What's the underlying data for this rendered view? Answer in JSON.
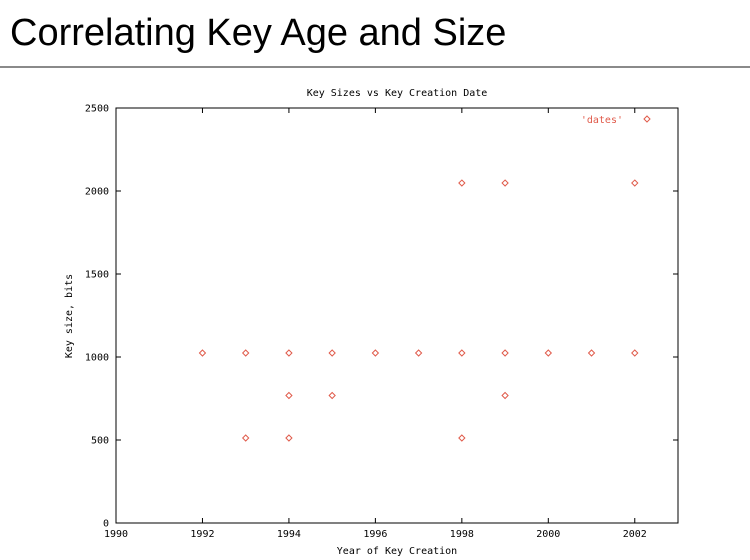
{
  "slide": {
    "title": "Correlating Key Age and Size"
  },
  "chart_data": {
    "type": "scatter",
    "title": "Key Sizes vs Key Creation Date",
    "xlabel": "Year of Key Creation",
    "ylabel": "Key size, bits",
    "xlim": [
      1990,
      2003
    ],
    "ylim": [
      0,
      2500
    ],
    "xticks": [
      1990,
      1992,
      1994,
      1996,
      1998,
      2000,
      2002
    ],
    "yticks": [
      0,
      500,
      1000,
      1500,
      2000,
      2500
    ],
    "grid": false,
    "legend_position": "top-right",
    "marker_color": "#e05a4a",
    "series": [
      {
        "name": "'dates'",
        "points": [
          {
            "x": 1992,
            "y": 1024
          },
          {
            "x": 1993,
            "y": 1024
          },
          {
            "x": 1993,
            "y": 512
          },
          {
            "x": 1994,
            "y": 1024
          },
          {
            "x": 1994,
            "y": 768
          },
          {
            "x": 1994,
            "y": 512
          },
          {
            "x": 1995,
            "y": 1024
          },
          {
            "x": 1995,
            "y": 768
          },
          {
            "x": 1996,
            "y": 1024
          },
          {
            "x": 1997,
            "y": 1024
          },
          {
            "x": 1998,
            "y": 2048
          },
          {
            "x": 1998,
            "y": 1024
          },
          {
            "x": 1998,
            "y": 512
          },
          {
            "x": 1999,
            "y": 2048
          },
          {
            "x": 1999,
            "y": 1024
          },
          {
            "x": 1999,
            "y": 768
          },
          {
            "x": 2000,
            "y": 1024
          },
          {
            "x": 2001,
            "y": 1024
          },
          {
            "x": 2002,
            "y": 2048
          },
          {
            "x": 2002,
            "y": 1024
          }
        ]
      }
    ]
  }
}
